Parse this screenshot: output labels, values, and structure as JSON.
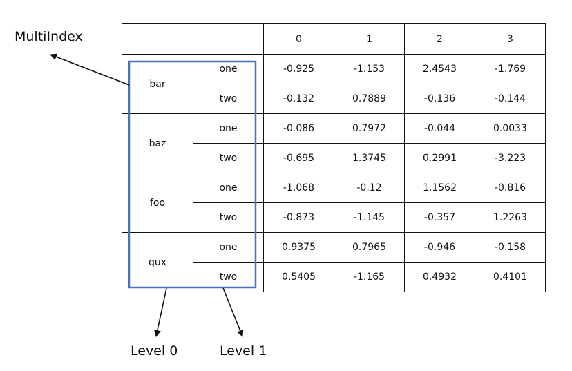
{
  "annotations": {
    "multiindex": "MultiIndex",
    "level0": "Level 0",
    "level1": "Level 1"
  },
  "colors": {
    "highlight_box": "#4a72b8",
    "lines": "#111111"
  },
  "table": {
    "columns": [
      "0",
      "1",
      "2",
      "3"
    ],
    "groups": [
      {
        "name": "bar",
        "rows": [
          {
            "label": "one",
            "values": [
              "-0.925",
              "-1.153",
              "2.4543",
              "-1.769"
            ]
          },
          {
            "label": "two",
            "values": [
              "-0.132",
              "0.7889",
              "-0.136",
              "-0.144"
            ]
          }
        ]
      },
      {
        "name": "baz",
        "rows": [
          {
            "label": "one",
            "values": [
              "-0.086",
              "0.7972",
              "-0.044",
              "0.0033"
            ]
          },
          {
            "label": "two",
            "values": [
              "-0.695",
              "1.3745",
              "0.2991",
              "-3.223"
            ]
          }
        ]
      },
      {
        "name": "foo",
        "rows": [
          {
            "label": "one",
            "values": [
              "-1.068",
              "-0.12",
              "1.1562",
              "-0.816"
            ]
          },
          {
            "label": "two",
            "values": [
              "-0.873",
              "-1.145",
              "-0.357",
              "1.2263"
            ]
          }
        ]
      },
      {
        "name": "qux",
        "rows": [
          {
            "label": "one",
            "values": [
              "0.9375",
              "0.7965",
              "-0.946",
              "-0.158"
            ]
          },
          {
            "label": "two",
            "values": [
              "0.5405",
              "-1.165",
              "0.4932",
              "0.4101"
            ]
          }
        ]
      }
    ]
  }
}
